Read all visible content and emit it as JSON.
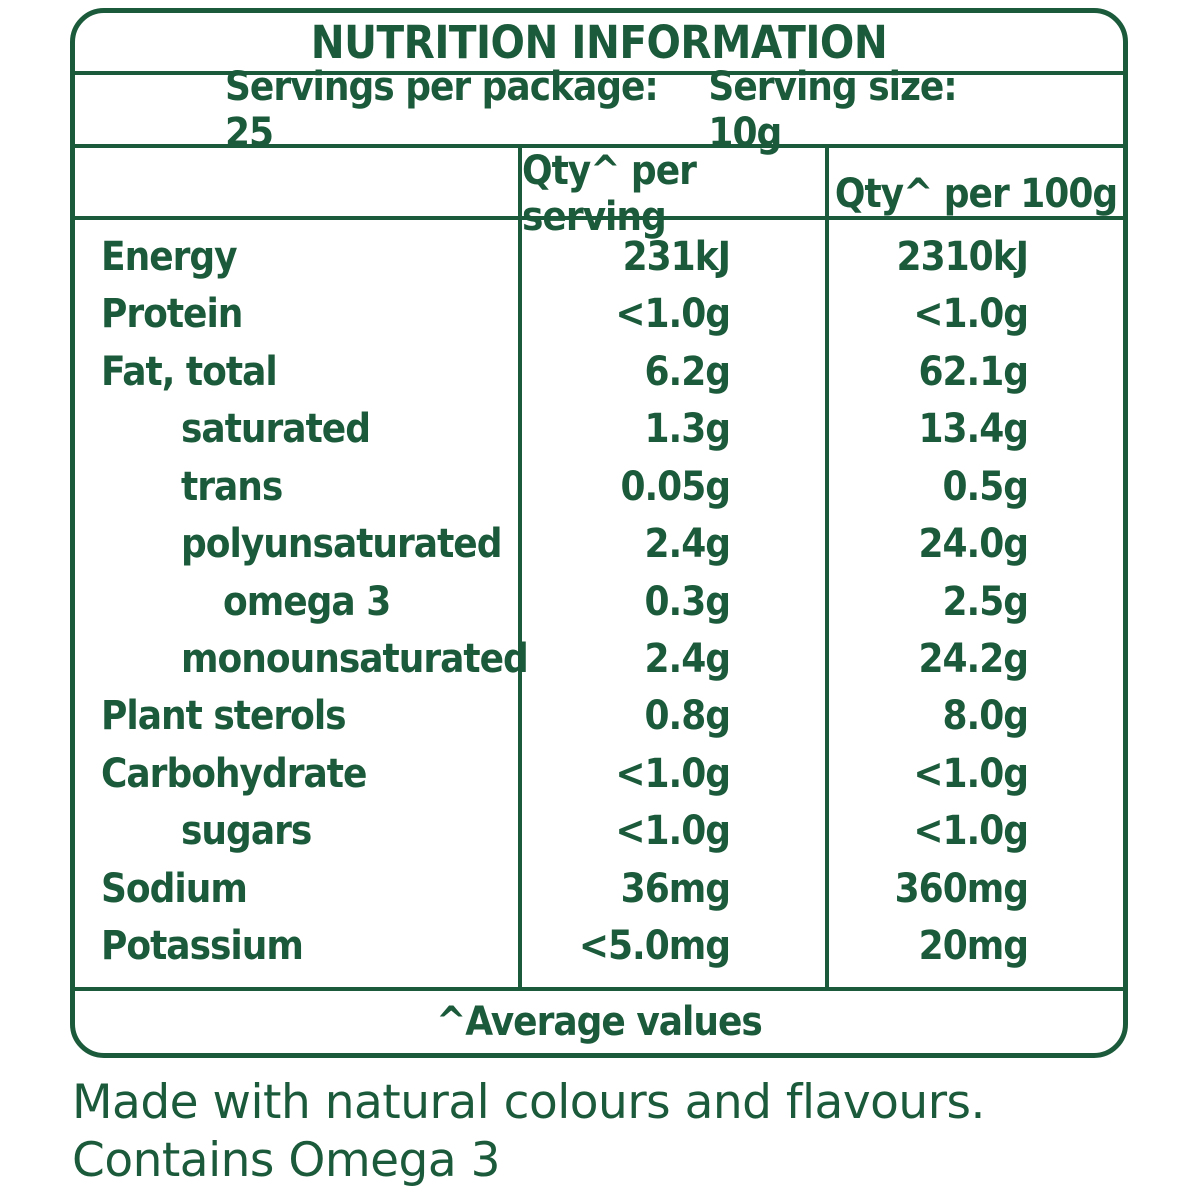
{
  "colors": {
    "text_green": "#1b5a3a",
    "background": "#ffffff"
  },
  "panel": {
    "title": "NUTRITION INFORMATION",
    "servings_per_package": "Servings per package: 25",
    "serving_size": "Serving size: 10g",
    "footnote": "^Average values"
  },
  "table": {
    "column_headers": {
      "per_serving": "Qty^ per serving",
      "per_100g": "Qty^ per 100g"
    },
    "rows": [
      {
        "label": "Energy",
        "indent": 0,
        "per_serving": "231kJ",
        "per_100g": "2310kJ"
      },
      {
        "label": "Protein",
        "indent": 0,
        "per_serving": "<1.0g",
        "per_100g": "<1.0g"
      },
      {
        "label": "Fat, total",
        "indent": 0,
        "per_serving": "6.2g",
        "per_100g": "62.1g"
      },
      {
        "label": "saturated",
        "indent": 1,
        "per_serving": "1.3g",
        "per_100g": "13.4g"
      },
      {
        "label": "trans",
        "indent": 1,
        "per_serving": "0.05g",
        "per_100g": "0.5g"
      },
      {
        "label": "polyunsaturated",
        "indent": 1,
        "per_serving": "2.4g",
        "per_100g": "24.0g"
      },
      {
        "label": "omega 3",
        "indent": 2,
        "per_serving": "0.3g",
        "per_100g": "2.5g"
      },
      {
        "label": "monounsaturated",
        "indent": 1,
        "per_serving": "2.4g",
        "per_100g": "24.2g"
      },
      {
        "label": "Plant sterols",
        "indent": 0,
        "per_serving": "0.8g",
        "per_100g": "8.0g"
      },
      {
        "label": "Carbohydrate",
        "indent": 0,
        "per_serving": "<1.0g",
        "per_100g": "<1.0g"
      },
      {
        "label": "sugars",
        "indent": 1,
        "per_serving": "<1.0g",
        "per_100g": "<1.0g"
      },
      {
        "label": "Sodium",
        "indent": 0,
        "per_serving": "36mg",
        "per_100g": "360mg"
      },
      {
        "label": "Potassium",
        "indent": 0,
        "per_serving": "<5.0mg",
        "per_100g": "20mg"
      }
    ]
  },
  "bottom_text": {
    "line1": "Made with natural colours and flavours.",
    "line2": "Contains Omega 3"
  }
}
